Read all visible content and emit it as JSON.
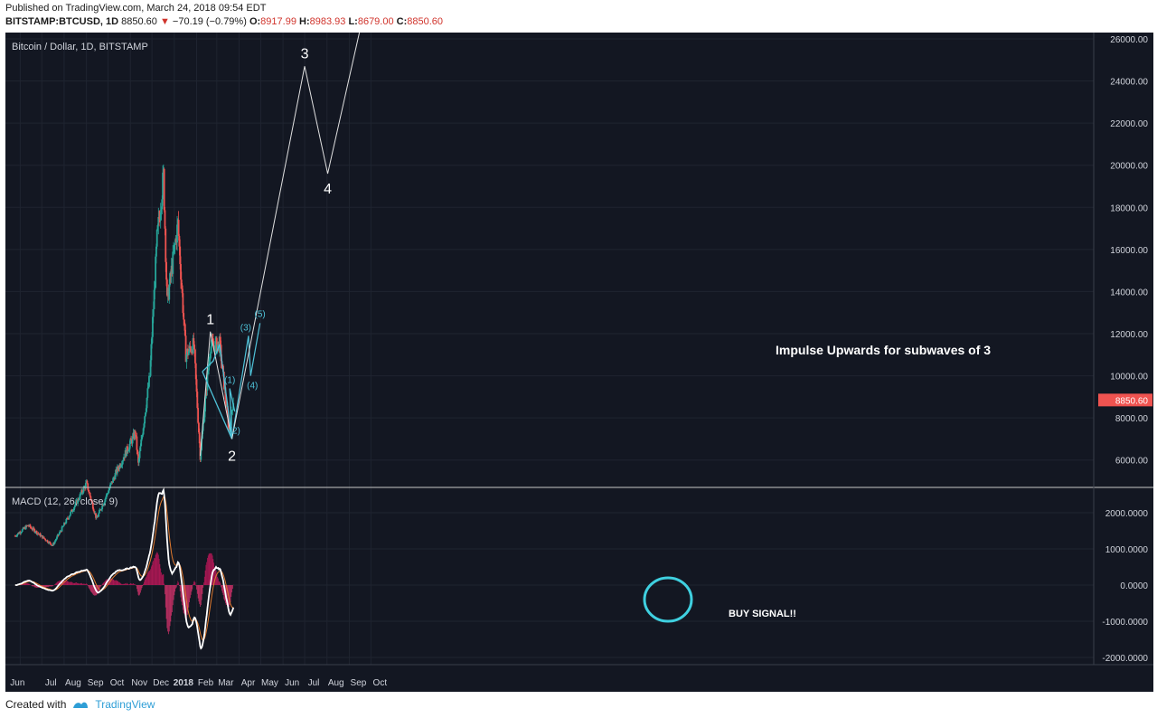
{
  "header": {
    "published": "Published on TradingView.com, March 24, 2018 09:54 EDT",
    "symbol": "BITSTAMP:BTCUSD, 1D",
    "last": "8850.60",
    "arrow": "▼",
    "change": "−70.19 (−0.79%)",
    "o_label": "O:",
    "o_val": "8917.99",
    "h_label": "H:",
    "h_val": "8983.93",
    "l_label": "L:",
    "l_val": "8679.00",
    "c_label": "C:",
    "c_val": "8850.60"
  },
  "footer": {
    "created": "Created with",
    "brand": "TradingView",
    "logo_icon": "tradingview-logo-icon"
  },
  "chart_data": [
    {
      "type": "candlestick",
      "title": "Bitcoin / Dollar, 1D, BITSTAMP",
      "ylim": [
        4700,
        26300
      ],
      "y_ticks": [
        "26000.00",
        "24000.00",
        "22000.00",
        "20000.00",
        "18000.00",
        "16000.00",
        "14000.00",
        "12000.00",
        "10000.00",
        "8000.00",
        "6000.00"
      ],
      "last_price_label": "8850.60",
      "x_labels": [
        "Jun",
        "Jul",
        "Aug",
        "Sep",
        "Oct",
        "Nov",
        "Dec",
        "2018",
        "Feb",
        "Mar",
        "Apr",
        "May",
        "Jun",
        "Jul",
        "Aug",
        "Sep",
        "Oct"
      ],
      "price_path_approx": [
        {
          "date": "2017-05-25",
          "price": 2400
        },
        {
          "date": "2017-06-12",
          "price": 2900
        },
        {
          "date": "2017-07-16",
          "price": 1950
        },
        {
          "date": "2017-08-20",
          "price": 4100
        },
        {
          "date": "2017-09-01",
          "price": 4900
        },
        {
          "date": "2017-09-15",
          "price": 3200
        },
        {
          "date": "2017-10-12",
          "price": 5400
        },
        {
          "date": "2017-11-08",
          "price": 7300
        },
        {
          "date": "2017-11-12",
          "price": 5800
        },
        {
          "date": "2017-11-28",
          "price": 10000
        },
        {
          "date": "2017-12-08",
          "price": 16500
        },
        {
          "date": "2017-12-17",
          "price": 19500
        },
        {
          "date": "2017-12-22",
          "price": 13500
        },
        {
          "date": "2018-01-06",
          "price": 17200
        },
        {
          "date": "2018-01-17",
          "price": 11000
        },
        {
          "date": "2018-01-28",
          "price": 11500
        },
        {
          "date": "2018-02-06",
          "price": 6200
        },
        {
          "date": "2018-02-20",
          "price": 11400
        },
        {
          "date": "2018-03-05",
          "price": 11500
        },
        {
          "date": "2018-03-18",
          "price": 7400
        },
        {
          "date": "2018-03-24",
          "price": 8850
        }
      ],
      "annotations": {
        "impulse_text": "Impulse Upwards for subwaves of 3",
        "wave_labels": [
          "1",
          "2",
          "3",
          "4"
        ],
        "subwave_labels": [
          "(1)",
          "(2)",
          "(3)",
          "(4)",
          "(5)"
        ],
        "projection_path": [
          {
            "date": "2018-03-22",
            "price": 7000
          },
          {
            "date": "2018-07-01",
            "price": 24700
          },
          {
            "date": "2018-08-02",
            "price": 19600
          },
          {
            "date": "2018-09-15",
            "price": 26300
          }
        ]
      }
    },
    {
      "type": "line",
      "title": "MACD (12, 26, close, 9)",
      "ylim": [
        -2200,
        2700
      ],
      "y_ticks": [
        "2000.0000",
        "1000.0000",
        "0.0000",
        "-1000.0000",
        "-2000.0000"
      ],
      "series": [
        {
          "name": "MACD",
          "color": "#ffffff"
        },
        {
          "name": "Signal",
          "color": "#e07a2e"
        },
        {
          "name": "Histogram",
          "color": "#d6336c"
        }
      ],
      "annotation_text": "BUY SIGNAL!!"
    }
  ]
}
